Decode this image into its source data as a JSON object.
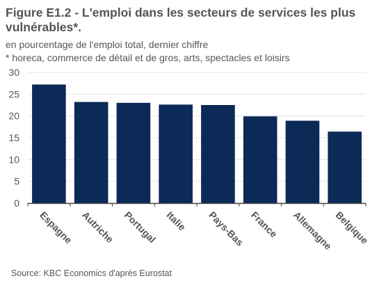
{
  "header": {
    "title": "Figure E1.2 - L'emploi dans les secteurs de services les plus vulnérables*.",
    "subtitle_line1": "en pourcentage de l'emploi total, dernier chiffre",
    "subtitle_line2": "* horeca, commerce de détail et de gros, arts, spectacles et loisirs"
  },
  "footer": {
    "source": "Source: KBC Economics d'après Eurostat"
  },
  "colors": {
    "bar": "#0b2a57",
    "grid": "#e3e3e3",
    "axis": "#444444",
    "text": "#555555"
  },
  "chart_data": {
    "type": "bar",
    "title": "Figure E1.2 - L'emploi dans les secteurs de services les plus vulnérables*.",
    "subtitle": "en pourcentage de l'emploi total, dernier chiffre",
    "categories": [
      "Espagne",
      "Autriche",
      "Portugal",
      "Italie",
      "Pays-Bas",
      "France",
      "Allemagne",
      "Belgique"
    ],
    "values": [
      27.2,
      23.2,
      23.0,
      22.6,
      22.5,
      19.9,
      18.9,
      16.4
    ],
    "ylim": [
      0,
      30
    ],
    "yticks": [
      0,
      5,
      10,
      15,
      20,
      25,
      30
    ],
    "grid": true,
    "legend": "none"
  }
}
